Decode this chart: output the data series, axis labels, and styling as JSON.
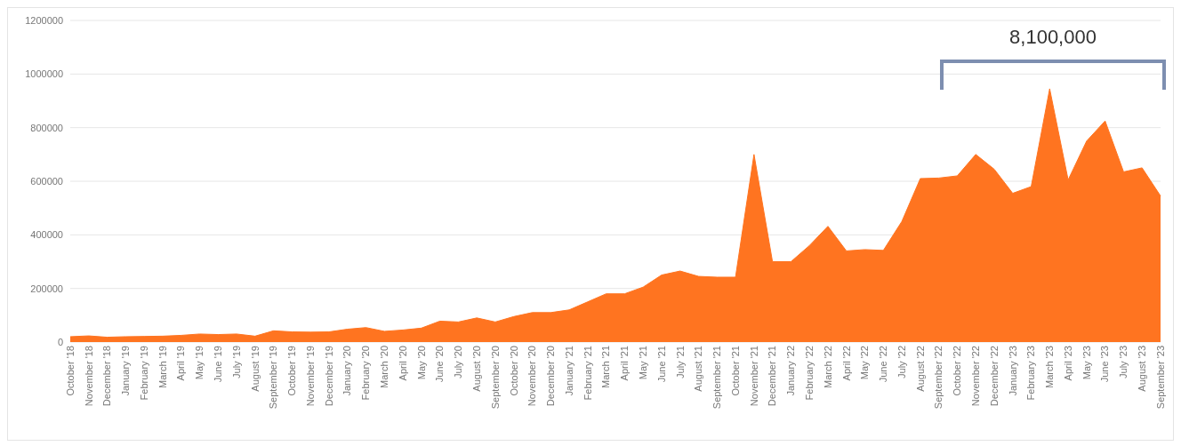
{
  "chart_data": {
    "type": "area",
    "categories": [
      "October '18",
      "November '18",
      "December '18",
      "January '19",
      "February '19",
      "March '19",
      "April '19",
      "May '19",
      "June '19",
      "July '19",
      "August '19",
      "September '19",
      "October '19",
      "November '19",
      "December '19",
      "January '20",
      "February '20",
      "March '20",
      "April '20",
      "May '20",
      "June '20",
      "July '20",
      "August '20",
      "September '20",
      "October '20",
      "November '20",
      "December '20",
      "January '21",
      "February '21",
      "March '21",
      "April '21",
      "May '21",
      "June '21",
      "July '21",
      "August '21",
      "September '21",
      "October '21",
      "November '21",
      "December '21",
      "January '22",
      "February '22",
      "March '22",
      "April '22",
      "May '22",
      "June '22",
      "July '22",
      "August '22",
      "September '22",
      "October '22",
      "November '22",
      "December '22",
      "January '23",
      "February '23",
      "March '23",
      "April '23",
      "May '23",
      "June '23",
      "July '23",
      "August '23",
      "September '23"
    ],
    "series": [
      {
        "color": "#ff7420",
        "values": [
          20000,
          23000,
          18000,
          20000,
          21000,
          22000,
          25000,
          30000,
          28000,
          30000,
          22000,
          42000,
          38000,
          37000,
          38000,
          48000,
          54000,
          40000,
          45000,
          52000,
          78000,
          75000,
          90000,
          75000,
          95000,
          110000,
          110000,
          120000,
          150000,
          180000,
          180000,
          205000,
          250000,
          265000,
          245000,
          242000,
          242000,
          700000,
          300000,
          300000,
          360000,
          432000,
          340000,
          345000,
          342000,
          450000,
          610000,
          612000,
          620000,
          700000,
          645000,
          555000,
          580000,
          945000,
          605000,
          750000,
          825000,
          635000,
          650000,
          545000
        ]
      }
    ],
    "ylim": [
      0,
      1200000
    ],
    "yticks": [
      0,
      200000,
      400000,
      600000,
      800000,
      1000000,
      1200000
    ],
    "grid": "y",
    "annotations": [
      "8,100,000"
    ]
  }
}
